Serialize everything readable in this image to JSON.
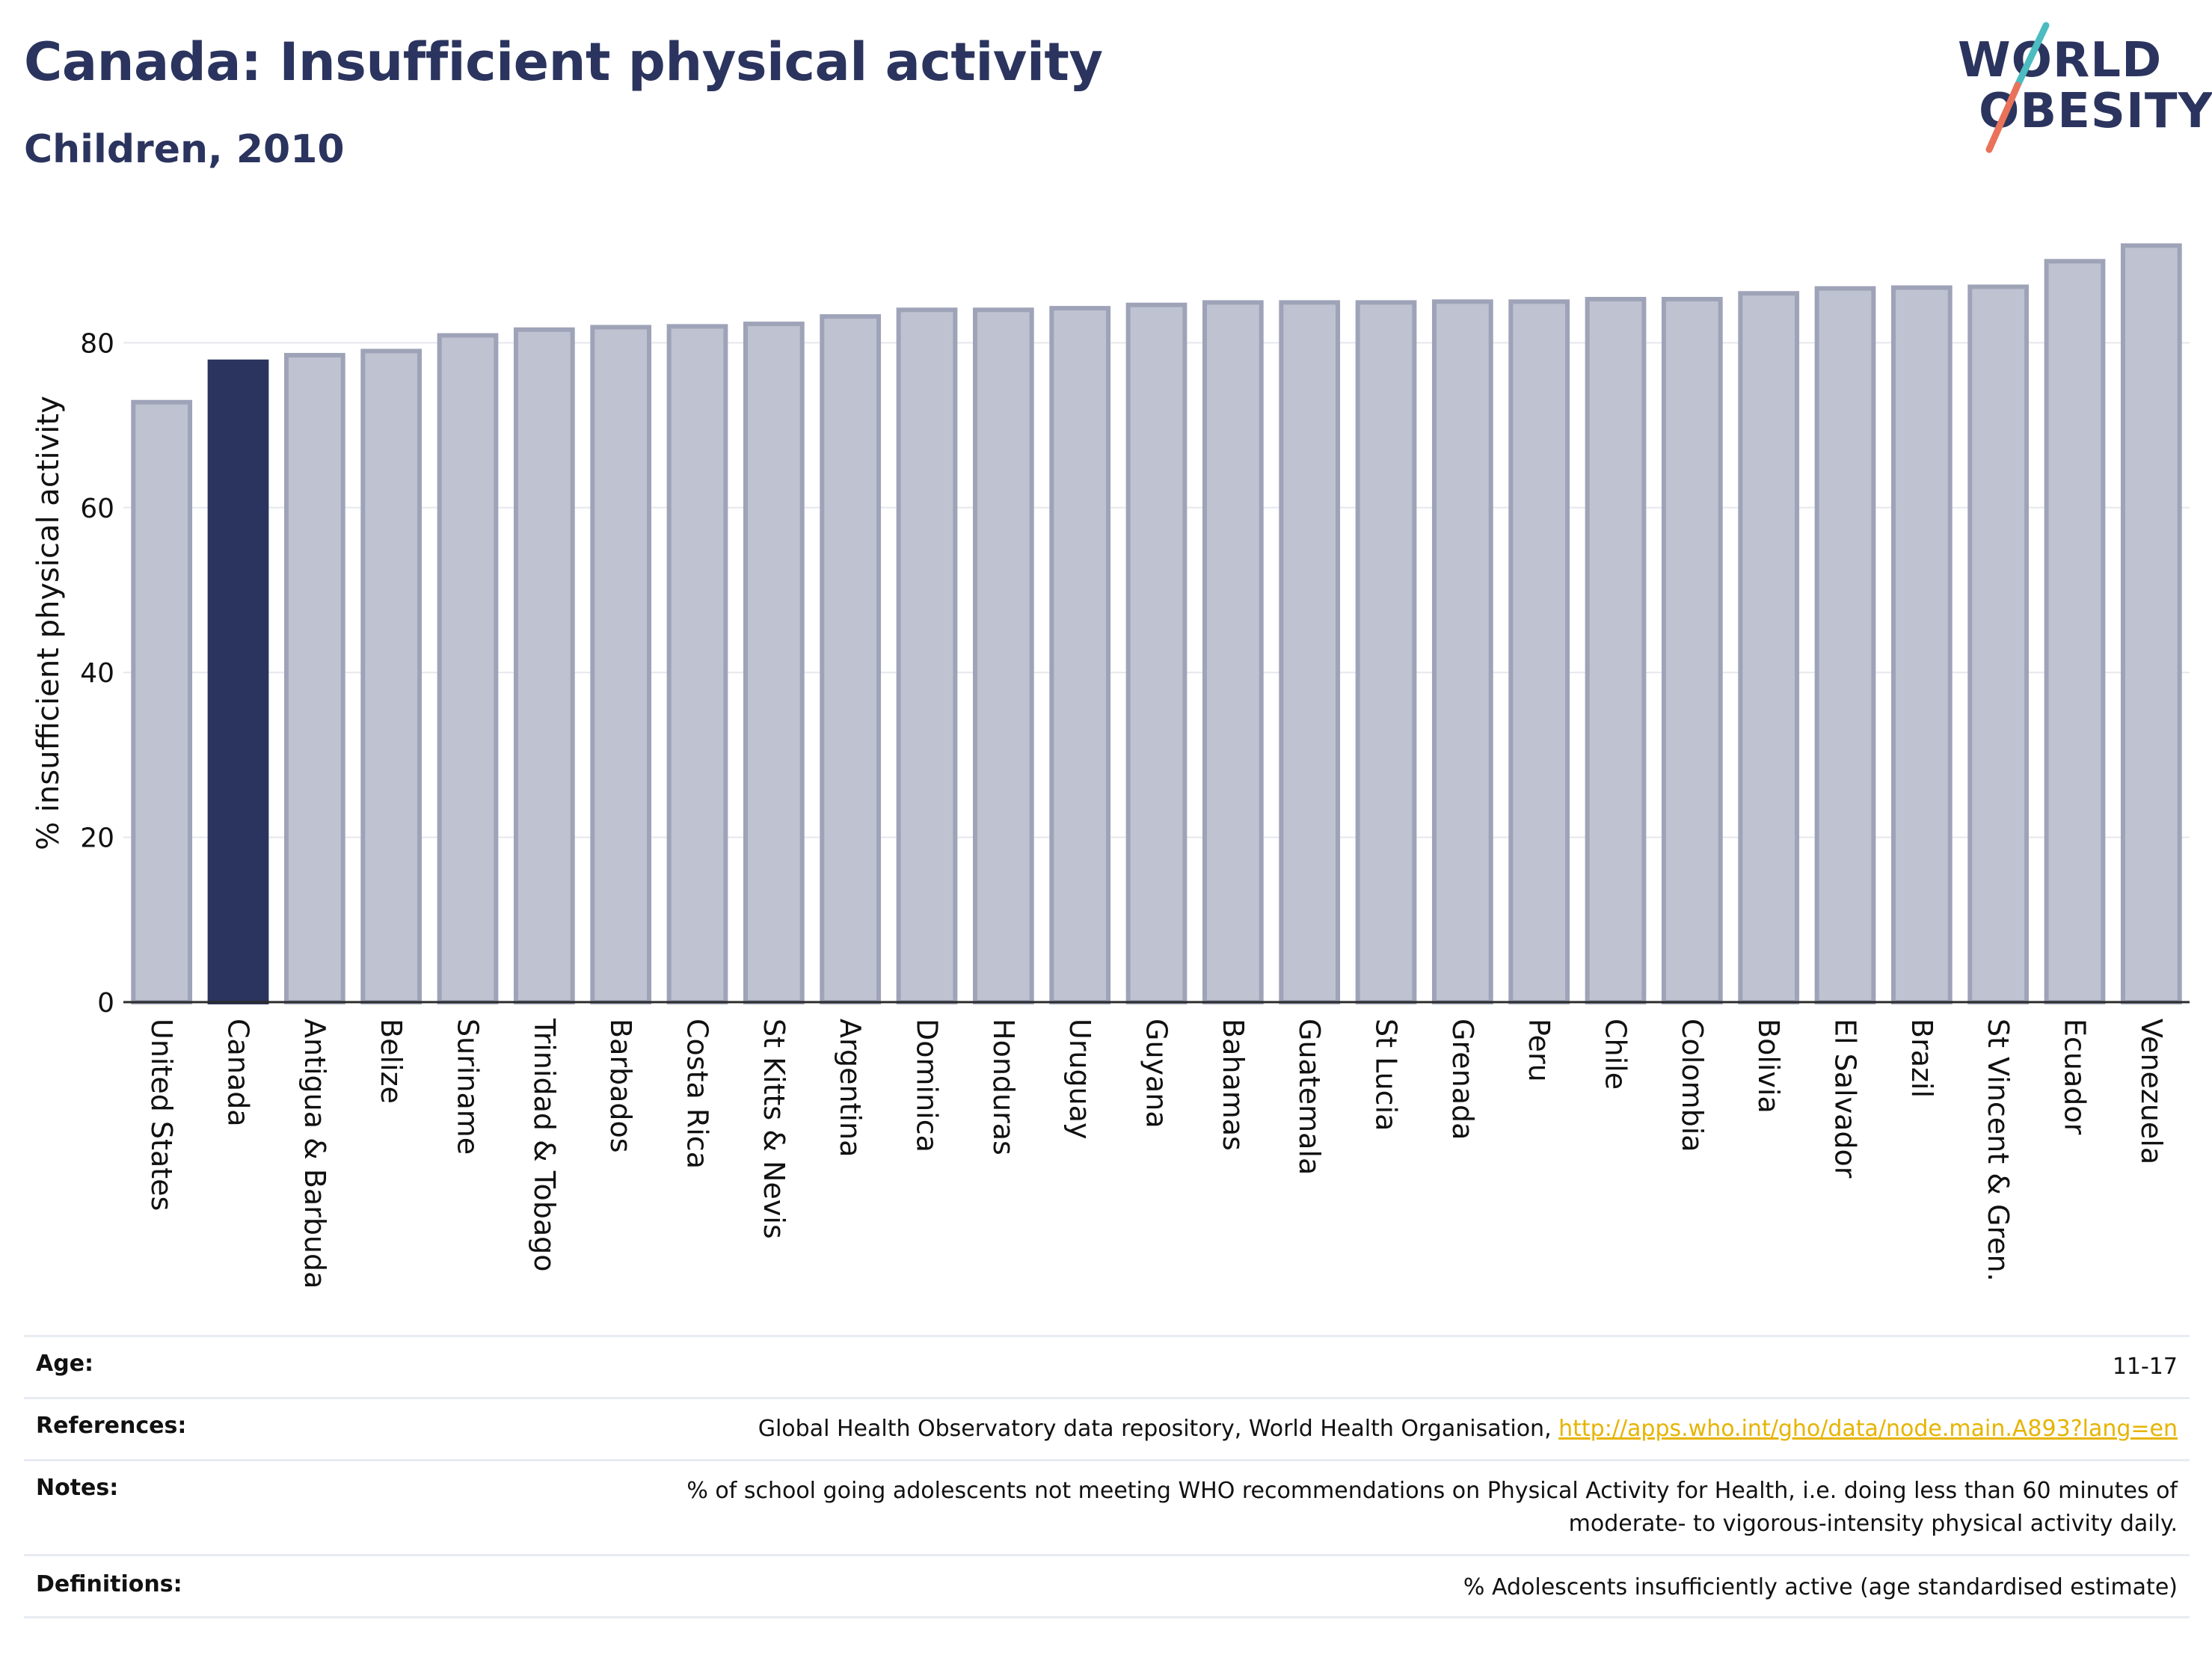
{
  "header": {
    "title": "Canada: Insufficient physical activity",
    "subtitle": "Children, 2010"
  },
  "logo": {
    "line1": "WORLD",
    "line2": "OBESITY",
    "accent_teal": "#4cbcc0",
    "accent_red": "#e8735a"
  },
  "colors": {
    "highlight_bar": "#2b345e",
    "other_bar_fill": "#bfc2d0",
    "other_bar_stroke": "#9ea3b8",
    "link": "#e6b400"
  },
  "chart_data": {
    "type": "bar",
    "ylabel": "% insufficient physical activity",
    "ylim": [
      0,
      92
    ],
    "yticks": [
      0,
      20,
      40,
      60,
      80
    ],
    "grid": true,
    "highlight": "Canada",
    "categories": [
      "United States",
      "Canada",
      "Antigua & Barbuda",
      "Belize",
      "Suriname",
      "Trinidad & Tobago",
      "Barbados",
      "Costa Rica",
      "St Kitts & Nevis",
      "Argentina",
      "Dominica",
      "Honduras",
      "Uruguay",
      "Guyana",
      "Bahamas",
      "Guatemala",
      "St Lucia",
      "Grenada",
      "Peru",
      "Chile",
      "Colombia",
      "Bolivia",
      "El Salvador",
      "Brazil",
      "St Vincent & Gren.",
      "Ecuador",
      "Venezuela"
    ],
    "values": [
      72.8,
      77.7,
      78.5,
      79.0,
      80.9,
      81.6,
      81.9,
      82.0,
      82.3,
      83.2,
      84.0,
      84.0,
      84.2,
      84.6,
      84.9,
      84.9,
      84.9,
      85.0,
      85.0,
      85.3,
      85.3,
      86.0,
      86.6,
      86.7,
      86.8,
      89.9,
      91.8
    ]
  },
  "info": {
    "age_label": "Age:",
    "age_value": "11-17",
    "references_label": "References:",
    "references_text": "Global Health Observatory data repository, World Health Organisation, ",
    "references_link": "http://apps.who.int/gho/data/node.main.A893?lang=en",
    "notes_label": "Notes:",
    "notes_line1": "% of school going adolescents not meeting WHO recommendations on Physical Activity for Health, i.e. doing less than 60 minutes of",
    "notes_line2": "moderate- to vigorous-intensity physical activity daily.",
    "definitions_label": "Definitions:",
    "definitions_value": "% Adolescents insufficiently active (age standardised estimate)"
  }
}
